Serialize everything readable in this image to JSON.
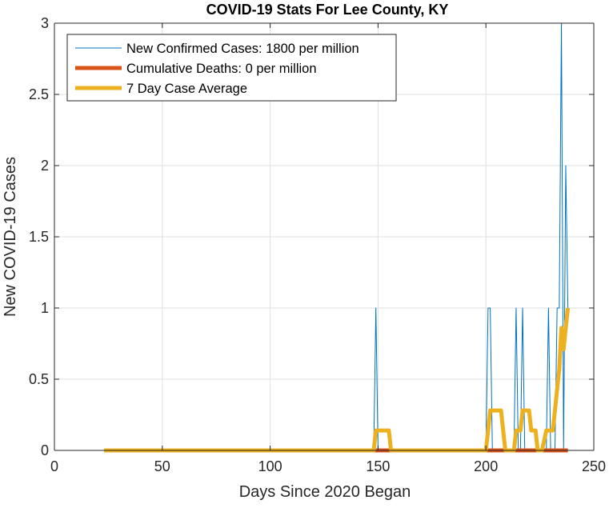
{
  "chart_data": {
    "type": "line",
    "title": "COVID-19 Stats For Lee County, KY",
    "xlabel": "Days Since 2020 Began",
    "ylabel": "New COVID-19 Cases",
    "xlim": [
      0,
      250
    ],
    "ylim": [
      0,
      3
    ],
    "xticks": [
      0,
      50,
      100,
      150,
      200,
      250
    ],
    "yticks": [
      0,
      0.5,
      1,
      1.5,
      2,
      2.5,
      3
    ],
    "xtick_labels": [
      "0",
      "50",
      "100",
      "150",
      "200",
      "250"
    ],
    "ytick_labels": [
      "0",
      "0.5",
      "1",
      "1.5",
      "2",
      "2.5",
      "3"
    ],
    "grid": true,
    "legend_position": "top-left",
    "series": [
      {
        "name": "New Confirmed Cases: 1800 per million",
        "color": "#0072BD",
        "line_width": "thin",
        "x": [
          23,
          148,
          149,
          150,
          200,
          201,
          202,
          203,
          213,
          214,
          215,
          216,
          217,
          218,
          219,
          228,
          229,
          230,
          232,
          233,
          234,
          235,
          236,
          237,
          238
        ],
        "y": [
          0,
          0,
          1,
          0,
          0,
          1,
          1,
          0,
          0,
          1,
          0,
          0,
          1,
          0,
          0,
          0,
          1,
          0,
          0,
          1,
          1,
          3,
          0,
          2,
          1
        ]
      },
      {
        "name": "Cumulative Deaths: 0 per million",
        "color": "#D95319",
        "line_width": "thick",
        "x": [
          23,
          238
        ],
        "y": [
          0,
          0
        ]
      },
      {
        "name": "7 Day Case Average",
        "color": "#EDB120",
        "line_width": "thick",
        "x": [
          23,
          148,
          149,
          150,
          151,
          152,
          153,
          154,
          155,
          156,
          200,
          201,
          202,
          203,
          204,
          205,
          206,
          207,
          208,
          209,
          210,
          211,
          213,
          214,
          215,
          216,
          217,
          218,
          219,
          220,
          221,
          222,
          223,
          224,
          225,
          226,
          228,
          229,
          230,
          231,
          232,
          233,
          234,
          235,
          236,
          237,
          238
        ],
        "y": [
          0,
          0,
          0.14,
          0.14,
          0.14,
          0.14,
          0.14,
          0.14,
          0.14,
          0,
          0,
          0.14,
          0.28,
          0.28,
          0.28,
          0.28,
          0.28,
          0.28,
          0.14,
          0,
          0,
          0,
          0,
          0.14,
          0.14,
          0.14,
          0.28,
          0.28,
          0.28,
          0.28,
          0.14,
          0.14,
          0.14,
          0,
          0,
          0,
          0.14,
          0.14,
          0.14,
          0.14,
          0.28,
          0.43,
          0.57,
          0.86,
          0.71,
          0.86,
          1.0
        ]
      }
    ]
  }
}
